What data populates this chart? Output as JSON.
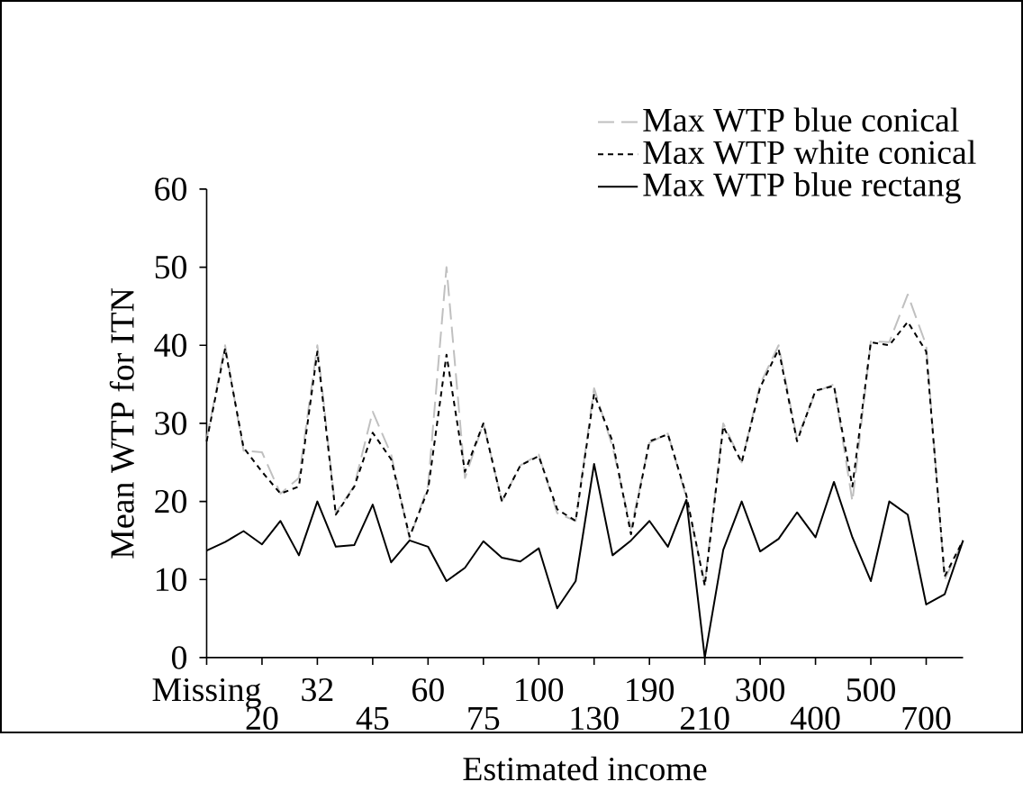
{
  "chart_data": {
    "type": "line",
    "xlabel": "Estimated income",
    "ylabel": "Mean WTP for ITN",
    "categories": [
      "Missing",
      null,
      null,
      "20",
      null,
      null,
      "32",
      null,
      null,
      "45",
      null,
      null,
      "60",
      null,
      null,
      "75",
      null,
      null,
      "100",
      null,
      null,
      "130",
      null,
      null,
      "190",
      null,
      null,
      "210",
      null,
      null,
      "300",
      null,
      null,
      "400",
      null,
      null,
      "500",
      null,
      null,
      "700",
      null,
      null
    ],
    "ylim": [
      0,
      60
    ],
    "yticks": [
      0,
      10,
      20,
      30,
      40,
      50,
      60
    ],
    "legend": "top right",
    "series": [
      {
        "name": "Max WTP blue conical",
        "color": "#c0c0c0",
        "line_style": "dashed",
        "values": [
          28,
          40,
          26.5,
          26.3,
          21,
          23,
          40,
          18.5,
          22,
          31.5,
          26,
          15.2,
          22,
          50,
          23,
          30,
          20,
          24.6,
          26,
          18.5,
          17.5,
          34.5,
          27,
          16.5,
          27.5,
          28.7,
          20.5,
          9.5,
          30,
          25,
          35,
          40,
          28,
          34,
          35,
          20,
          40.5,
          40.4,
          46.5,
          40,
          10,
          15
        ]
      },
      {
        "name": "Max WTP white conical",
        "color": "#000000",
        "line_style": "dotted",
        "values": [
          27.7,
          39.6,
          26.9,
          23.8,
          21,
          21.9,
          39.2,
          18.3,
          21.9,
          28.8,
          25.4,
          15.5,
          21.5,
          38.8,
          23.8,
          30,
          20,
          24.6,
          25.8,
          19,
          17.5,
          33.8,
          27.7,
          15.8,
          27.7,
          28.6,
          20.8,
          9.2,
          29.6,
          25,
          34.6,
          39.5,
          27.7,
          34.2,
          34.8,
          21.9,
          40.4,
          40,
          43,
          39.2,
          10.4,
          15
        ]
      },
      {
        "name": "Max WTP blue rectang",
        "color": "#000000",
        "line_style": "solid",
        "values": [
          13.7,
          14.8,
          16.2,
          14.5,
          17.5,
          13.1,
          20,
          14.2,
          14.4,
          19.6,
          12.2,
          15,
          14.2,
          9.8,
          11.5,
          14.9,
          12.8,
          12.3,
          14,
          6.3,
          9.8,
          24.8,
          13.1,
          15,
          17.5,
          14.2,
          20.2,
          0,
          13.8,
          20,
          13.6,
          15.2,
          18.6,
          15.4,
          22.5,
          15.4,
          9.8,
          20,
          18.3,
          6.8,
          8.1,
          15
        ]
      }
    ]
  }
}
